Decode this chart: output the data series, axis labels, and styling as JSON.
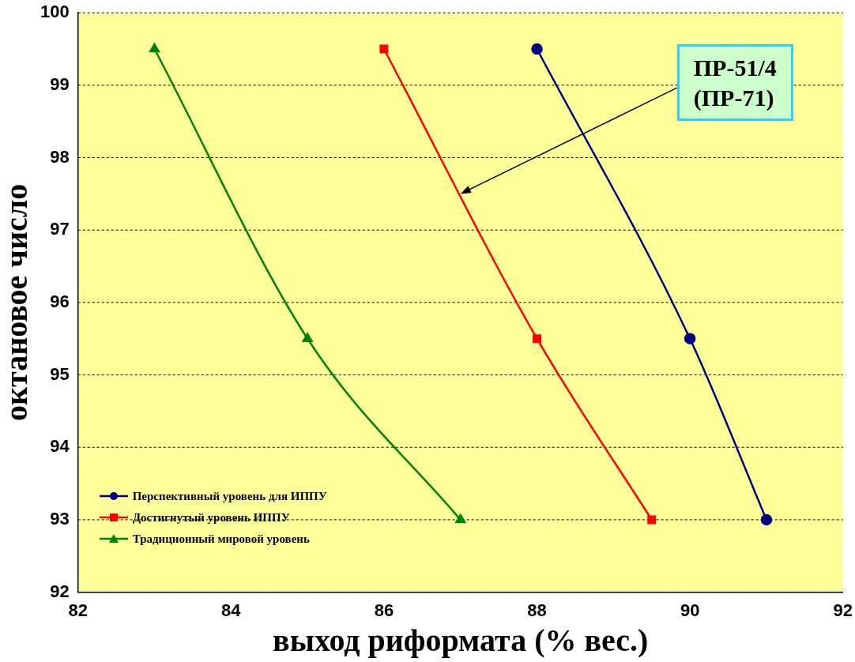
{
  "chart_data": {
    "type": "line",
    "xlabel": "выход риформата (% вес.)",
    "ylabel": "октановое число",
    "xlim": [
      82,
      92
    ],
    "xticks": [
      82,
      84,
      86,
      88,
      90,
      92
    ],
    "ylim": [
      92,
      100
    ],
    "yticks": [
      92,
      93,
      94,
      95,
      96,
      97,
      98,
      99,
      100
    ],
    "grid": "y",
    "legend": "bottom left",
    "line_style": "solid",
    "annotations": [
      {
        "text": "ПР-51/4\n(ПР-71)",
        "x": 87,
        "y": 97.5
      }
    ],
    "series": [
      {
        "name": "Перспективный уровень для ИППУ",
        "color": "#000080",
        "marker": "circle",
        "x": [
          88,
          90,
          91
        ],
        "values": [
          99.5,
          95.5,
          93
        ]
      },
      {
        "name": "Достигнутый уровень ИППУ",
        "color": "#ff0000",
        "marker": "square",
        "x": [
          86,
          88,
          89.5
        ],
        "values": [
          99.5,
          95.5,
          93
        ]
      },
      {
        "name": "Традиционный мировой уровень",
        "color": "#008000",
        "marker": "triangle",
        "x": [
          83,
          85,
          87
        ],
        "values": [
          99.5,
          95.5,
          93
        ]
      }
    ]
  }
}
